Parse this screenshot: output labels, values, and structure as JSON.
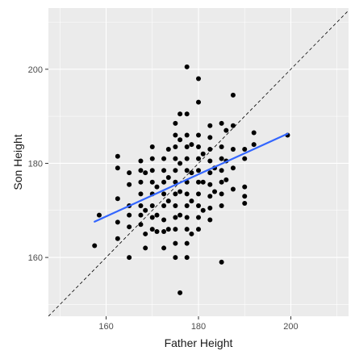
{
  "chart_data": {
    "type": "scatter",
    "xlabel": "Father Height",
    "ylabel": "Son Height",
    "xlim": [
      147.5,
      212.5
    ],
    "ylim": [
      147.5,
      213
    ],
    "x_ticks": [
      160,
      180,
      200
    ],
    "y_ticks": [
      160,
      180,
      200
    ],
    "x_minor": [
      150,
      170,
      190,
      210
    ],
    "y_minor": [
      150,
      170,
      190,
      210
    ],
    "grid": true,
    "panel_background": "#ebebeb",
    "grid_color": "#ffffff",
    "point_color": "#000000",
    "colors": {
      "fit_line": "#3366ff",
      "identity_line": "#000000"
    },
    "fit_line": {
      "x": [
        157.5,
        199.3
      ],
      "y": [
        167.6,
        186.3
      ]
    },
    "identity_line": {
      "slope": 1,
      "intercept": 0,
      "style": "dashed"
    },
    "points": [
      [
        157.5,
        162.5
      ],
      [
        158.5,
        169
      ],
      [
        162.5,
        181.5
      ],
      [
        162.5,
        179
      ],
      [
        162.5,
        172.5
      ],
      [
        162.5,
        167.5
      ],
      [
        162.5,
        164
      ],
      [
        165,
        178
      ],
      [
        165,
        175.5
      ],
      [
        165,
        171
      ],
      [
        165,
        169
      ],
      [
        165,
        166.5
      ],
      [
        165,
        160
      ],
      [
        167.5,
        180.5
      ],
      [
        167.5,
        178.5
      ],
      [
        167.5,
        176
      ],
      [
        167.5,
        173.5
      ],
      [
        167.5,
        171
      ],
      [
        167.5,
        169
      ],
      [
        167.5,
        167
      ],
      [
        168.5,
        178
      ],
      [
        168.5,
        170
      ],
      [
        168.5,
        165
      ],
      [
        168.5,
        162
      ],
      [
        170,
        183.5
      ],
      [
        170,
        181
      ],
      [
        170,
        178.5
      ],
      [
        170,
        176
      ],
      [
        170,
        173.5
      ],
      [
        170,
        171
      ],
      [
        170,
        168.5
      ],
      [
        170,
        166
      ],
      [
        171,
        175
      ],
      [
        171,
        169
      ],
      [
        171,
        165.5
      ],
      [
        172.5,
        181
      ],
      [
        172.5,
        178.5
      ],
      [
        172.5,
        176
      ],
      [
        172.5,
        173.5
      ],
      [
        172.5,
        171
      ],
      [
        172.5,
        168
      ],
      [
        172.5,
        165.5
      ],
      [
        172.5,
        162
      ],
      [
        173.5,
        183
      ],
      [
        173.5,
        177
      ],
      [
        173.5,
        172
      ],
      [
        173.5,
        166
      ],
      [
        175,
        188.5
      ],
      [
        175,
        186
      ],
      [
        175,
        183.5
      ],
      [
        175,
        181
      ],
      [
        175,
        178.5
      ],
      [
        175,
        176
      ],
      [
        175,
        173.5
      ],
      [
        175,
        171
      ],
      [
        175,
        168.5
      ],
      [
        175,
        166
      ],
      [
        175,
        163
      ],
      [
        175,
        160
      ],
      [
        176,
        190.5
      ],
      [
        176,
        185
      ],
      [
        176,
        180
      ],
      [
        176,
        174
      ],
      [
        176,
        169
      ],
      [
        176,
        152.5
      ],
      [
        177.5,
        200.5
      ],
      [
        177.5,
        190.5
      ],
      [
        177.5,
        186
      ],
      [
        177.5,
        183.5
      ],
      [
        177.5,
        181
      ],
      [
        177.5,
        178.5
      ],
      [
        177.5,
        176
      ],
      [
        177.5,
        173.5
      ],
      [
        177.5,
        171
      ],
      [
        177.5,
        168.5
      ],
      [
        177.5,
        166
      ],
      [
        177.5,
        163
      ],
      [
        177.5,
        160
      ],
      [
        178.5,
        184
      ],
      [
        178.5,
        178
      ],
      [
        178.5,
        172
      ],
      [
        178.5,
        165
      ],
      [
        180,
        198
      ],
      [
        180,
        193
      ],
      [
        180,
        186
      ],
      [
        180,
        183.5
      ],
      [
        180,
        181
      ],
      [
        180,
        178.5
      ],
      [
        180,
        176
      ],
      [
        180,
        173.5
      ],
      [
        180,
        171
      ],
      [
        180,
        168.5
      ],
      [
        180,
        166
      ],
      [
        181,
        182
      ],
      [
        181,
        176
      ],
      [
        181,
        170
      ],
      [
        182.5,
        188
      ],
      [
        182.5,
        185.5
      ],
      [
        182.5,
        183
      ],
      [
        182.5,
        180.5
      ],
      [
        182.5,
        178
      ],
      [
        182.5,
        175.5
      ],
      [
        182.5,
        173
      ],
      [
        182.5,
        170.5
      ],
      [
        182.5,
        168
      ],
      [
        183.5,
        179
      ],
      [
        183.5,
        174
      ],
      [
        185,
        188.5
      ],
      [
        185,
        183.5
      ],
      [
        185,
        181
      ],
      [
        185,
        178.5
      ],
      [
        185,
        176
      ],
      [
        185,
        173.5
      ],
      [
        185,
        171
      ],
      [
        185,
        159
      ],
      [
        186,
        187
      ],
      [
        186,
        180.5
      ],
      [
        186,
        176.5
      ],
      [
        187.5,
        194.5
      ],
      [
        187.5,
        188
      ],
      [
        187.5,
        183
      ],
      [
        187.5,
        179
      ],
      [
        187.5,
        174.5
      ],
      [
        190,
        183
      ],
      [
        190,
        181
      ],
      [
        190,
        175
      ],
      [
        190,
        173
      ],
      [
        190,
        171.5
      ],
      [
        192,
        186.5
      ],
      [
        192,
        184
      ],
      [
        199.3,
        186
      ]
    ]
  }
}
